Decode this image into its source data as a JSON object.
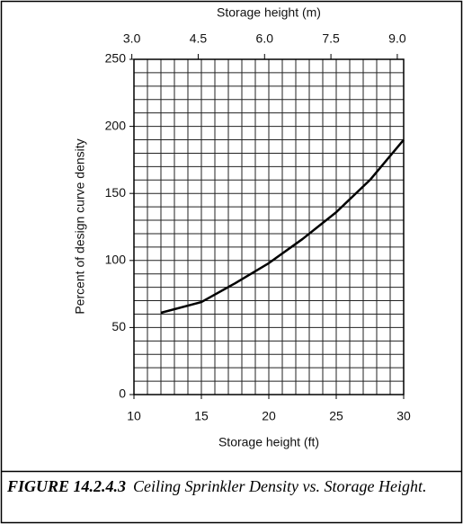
{
  "chart_data": {
    "type": "line",
    "x_label": "Storage height (ft)",
    "x2_label": "Storage height (m)",
    "y_label": "Percent of design curve density",
    "x": [
      12,
      15,
      17.5,
      20,
      22.5,
      25,
      27.5,
      29,
      30
    ],
    "series": [
      {
        "color": "#000000",
        "values": [
          61,
          69,
          83,
          98,
          116,
          136,
          160,
          178,
          190
        ]
      }
    ],
    "xlim": [
      10,
      30
    ],
    "xticks": [
      10,
      15,
      20,
      25,
      30
    ],
    "x2lim": [
      3.048,
      9.144
    ],
    "x2ticks": [
      {
        "value": 3,
        "label": "3.0"
      },
      {
        "value": 4.5,
        "label": "4.5"
      },
      {
        "value": 6,
        "label": "6.0"
      },
      {
        "value": 7.5,
        "label": "7.5"
      },
      {
        "value": 9,
        "label": "9.0"
      }
    ],
    "ylim": [
      0,
      250
    ],
    "yticks": [
      0,
      50,
      100,
      150,
      200,
      250
    ],
    "grid": true,
    "xgrid": [
      10,
      11,
      12,
      13,
      14,
      15,
      16,
      17,
      18,
      19,
      20,
      21,
      22,
      23,
      24,
      25,
      26,
      27,
      28,
      29,
      30
    ],
    "ygrid": [
      0,
      10,
      20,
      30,
      40,
      50,
      60,
      70,
      80,
      90,
      100,
      110,
      120,
      130,
      140,
      150,
      160,
      170,
      180,
      190,
      200,
      210,
      220,
      230,
      240,
      250
    ]
  },
  "caption": {
    "label": "FIGURE 14.2.4.3",
    "text": "Ceiling Sprinkler Density vs. Storage Height."
  }
}
